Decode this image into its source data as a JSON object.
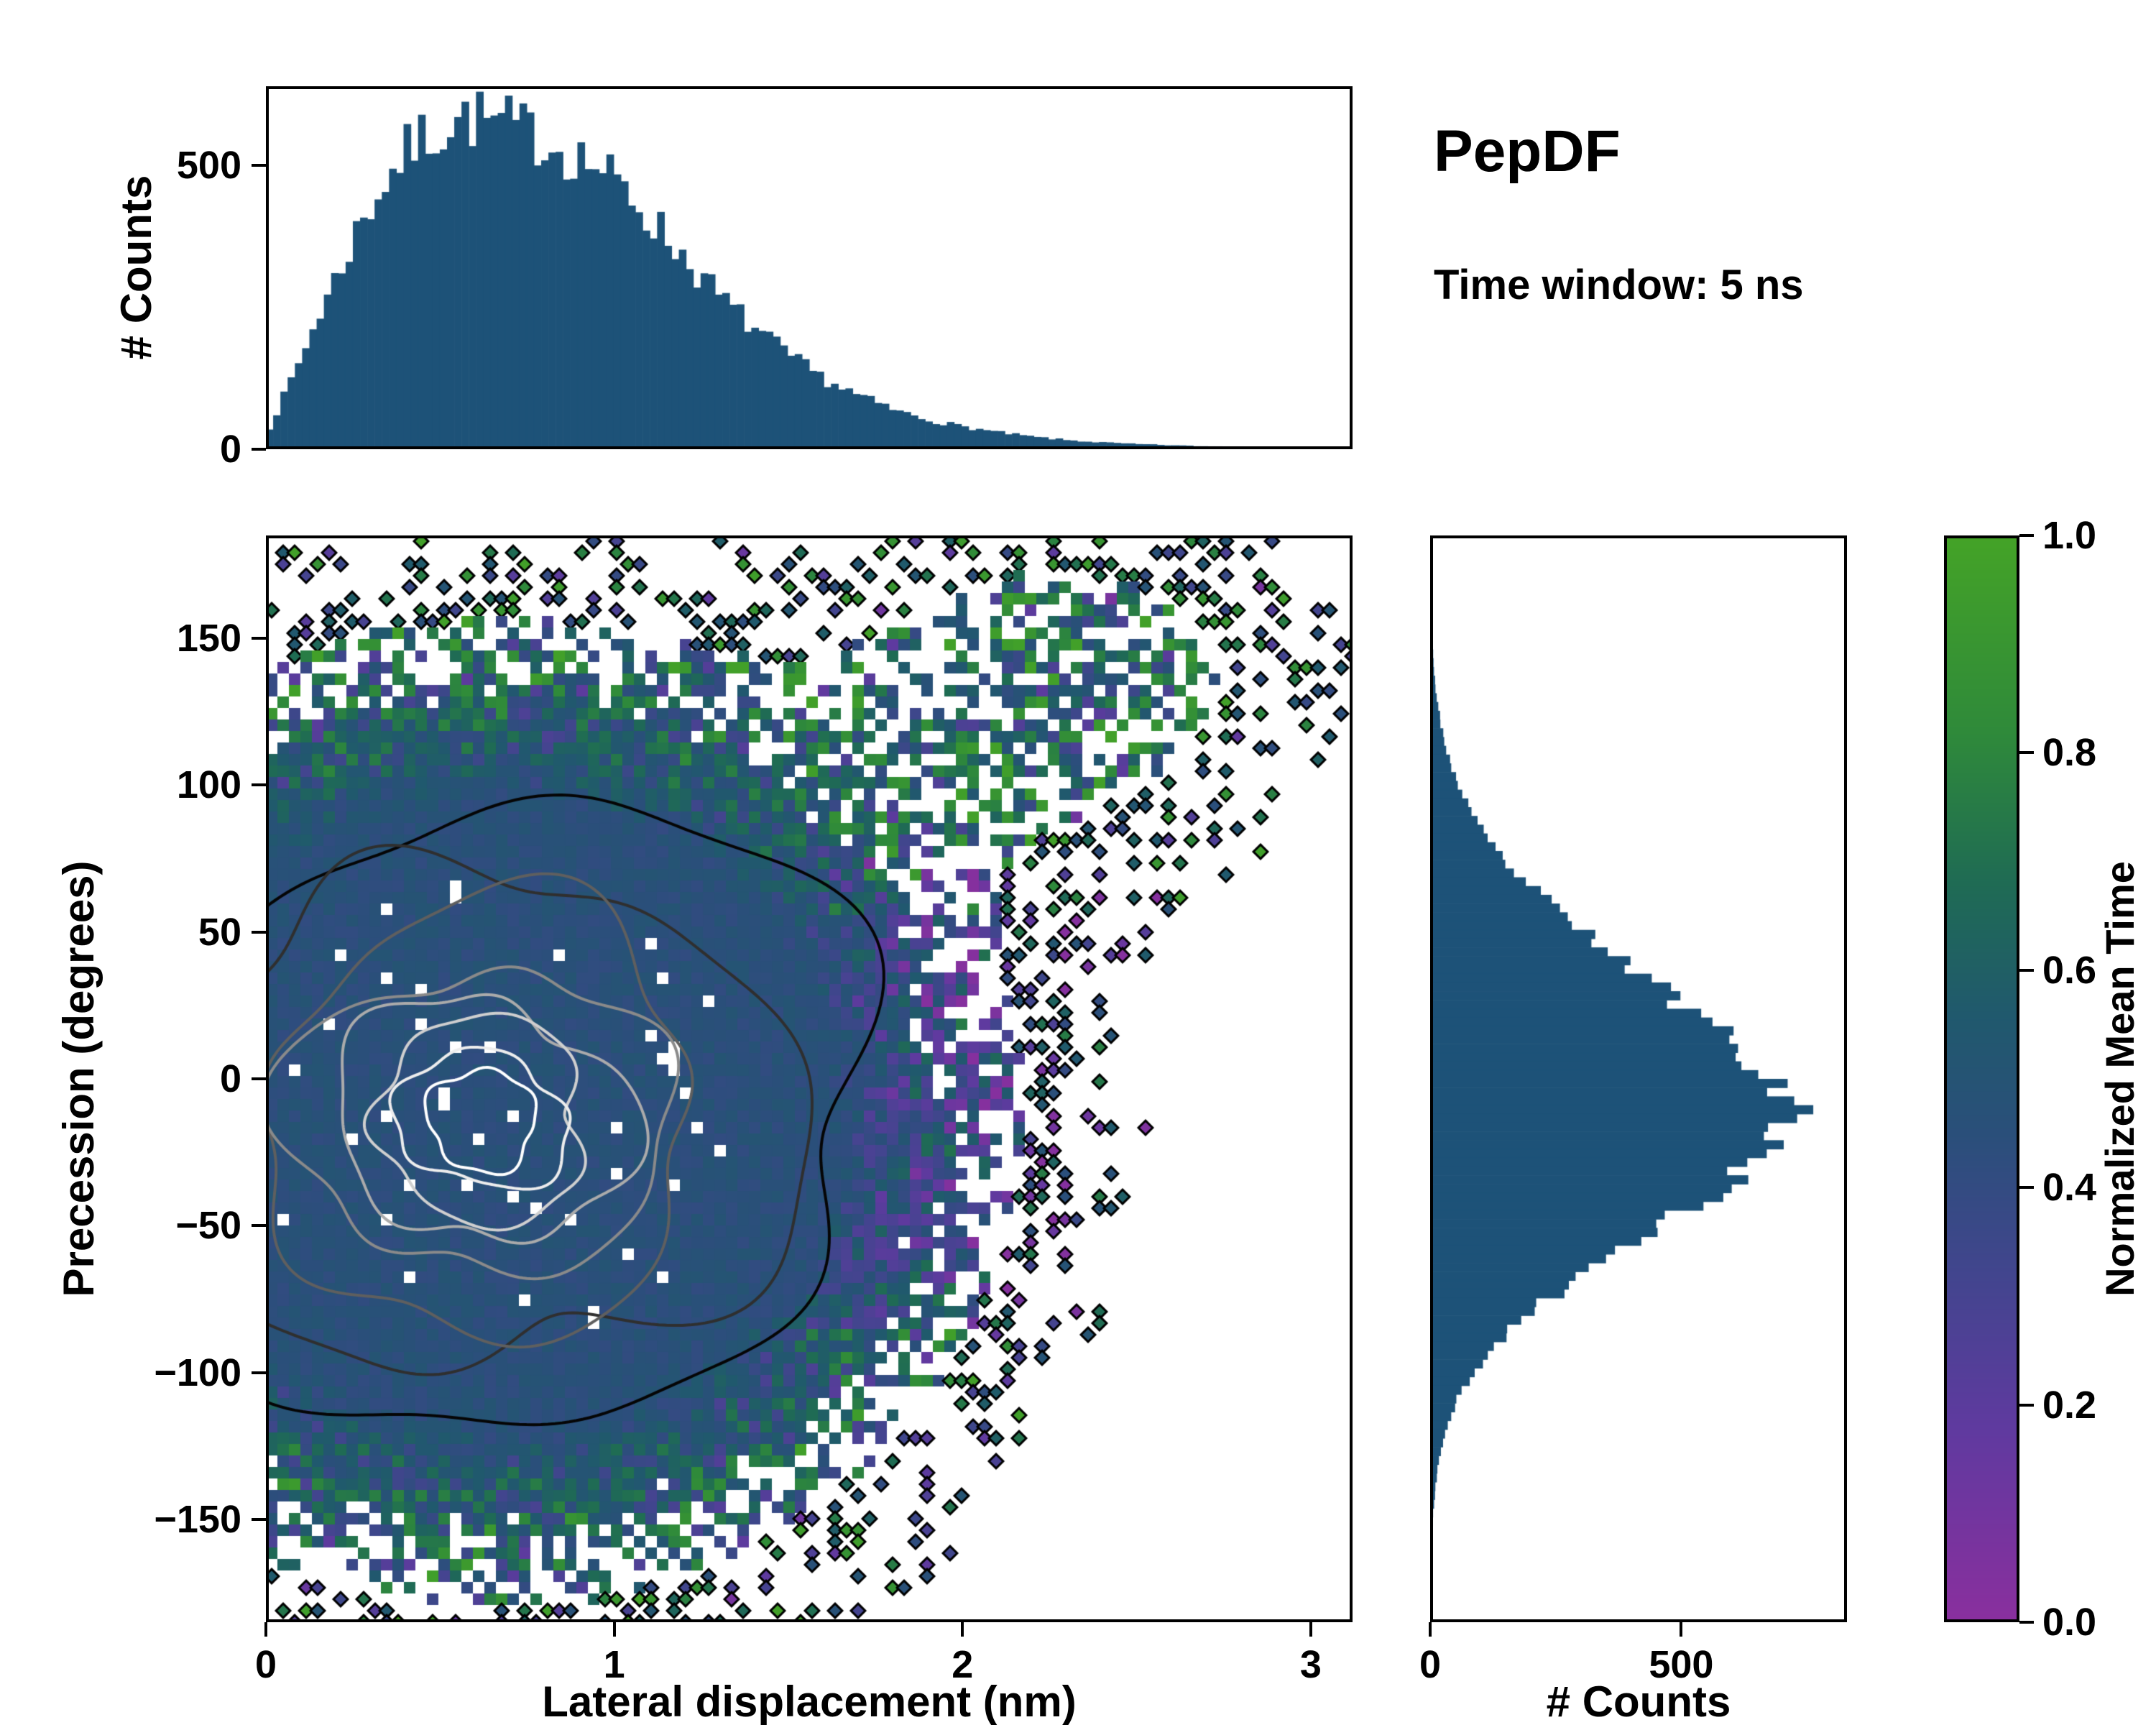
{
  "page": {
    "title": "PepDF",
    "subtitle": "Time window: 5 ns",
    "background": "#ffffff"
  },
  "colors": {
    "bar": "#1d5278",
    "axis": "#000000",
    "colormap_stops": [
      [
        0.0,
        "#8a2f9e"
      ],
      [
        0.18,
        "#5f3a9f"
      ],
      [
        0.32,
        "#42458e"
      ],
      [
        0.45,
        "#2a4f7a"
      ],
      [
        0.56,
        "#20596d"
      ],
      [
        0.68,
        "#1f6b54"
      ],
      [
        0.82,
        "#2f8a3a"
      ],
      [
        1.0,
        "#44a327"
      ]
    ]
  },
  "chart_data": [
    {
      "id": "top_hist",
      "type": "bar",
      "xlabel": "",
      "ylabel": "# Counts",
      "xlim": [
        0,
        3.12
      ],
      "ylim": [
        0,
        640
      ],
      "yticks": [
        {
          "v": 0,
          "label": "0"
        },
        {
          "v": 500,
          "label": "500"
        }
      ],
      "n_bins": 150,
      "envelope": [
        [
          0,
          25
        ],
        [
          0.05,
          90
        ],
        [
          0.1,
          160
        ],
        [
          0.15,
          235
        ],
        [
          0.2,
          300
        ],
        [
          0.25,
          370
        ],
        [
          0.3,
          430
        ],
        [
          0.35,
          480
        ],
        [
          0.4,
          520
        ],
        [
          0.45,
          550
        ],
        [
          0.5,
          565
        ],
        [
          0.55,
          580
        ],
        [
          0.6,
          585
        ],
        [
          0.65,
          575
        ],
        [
          0.7,
          570
        ],
        [
          0.75,
          560
        ],
        [
          0.8,
          545
        ],
        [
          0.85,
          530
        ],
        [
          0.9,
          515
        ],
        [
          0.95,
          500
        ],
        [
          1.0,
          470
        ],
        [
          1.05,
          445
        ],
        [
          1.1,
          410
        ],
        [
          1.15,
          375
        ],
        [
          1.2,
          340
        ],
        [
          1.3,
          270
        ],
        [
          1.4,
          215
        ],
        [
          1.5,
          165
        ],
        [
          1.6,
          125
        ],
        [
          1.7,
          95
        ],
        [
          1.8,
          70
        ],
        [
          1.9,
          52
        ],
        [
          2.0,
          40
        ],
        [
          2.1,
          30
        ],
        [
          2.2,
          22
        ],
        [
          2.3,
          16
        ],
        [
          2.4,
          12
        ],
        [
          2.5,
          9
        ],
        [
          2.6,
          7
        ],
        [
          2.7,
          5
        ],
        [
          2.8,
          4
        ],
        [
          2.9,
          3
        ],
        [
          3.0,
          2
        ],
        [
          3.12,
          1
        ]
      ],
      "noise": 0.1,
      "seed": 7
    },
    {
      "id": "main_heatmap",
      "type": "heatmap",
      "xlabel": "Lateral displacement (nm)",
      "ylabel": "Precession (degrees)",
      "xlim": [
        0,
        3.12
      ],
      "ylim": [
        -185,
        185
      ],
      "xticks": [
        {
          "v": 0,
          "label": "0"
        },
        {
          "v": 1,
          "label": "1"
        },
        {
          "v": 2,
          "label": "2"
        },
        {
          "v": 3,
          "label": "3"
        }
      ],
      "yticks": [
        {
          "v": 150,
          "label": "150"
        },
        {
          "v": 100,
          "label": "100"
        },
        {
          "v": 50,
          "label": "50"
        },
        {
          "v": 0,
          "label": "0"
        },
        {
          "v": -50,
          "label": "−50"
        },
        {
          "v": -100,
          "label": "−100"
        },
        {
          "v": -150,
          "label": "−150"
        }
      ],
      "value_range": [
        0,
        1
      ],
      "mean_value_core": 0.46,
      "density_center": {
        "x": 0.66,
        "y": -12
      },
      "density_sigma": {
        "core_x": 0.42,
        "core_y": 46,
        "broad_x": 0.7,
        "broad_y": 78
      },
      "upper_right_lobe": {
        "x": 2.3,
        "y": 135,
        "sx": 0.45,
        "sy": 38,
        "w": 0.07
      },
      "seed": 11,
      "contours": {
        "center": {
          "x": 0.62,
          "y": -14
        },
        "radii": [
          [
            0.17,
            16
          ],
          [
            0.24,
            24
          ],
          [
            0.32,
            33
          ],
          [
            0.41,
            43
          ],
          [
            0.52,
            55
          ],
          [
            0.66,
            70
          ],
          [
            0.85,
            92
          ],
          [
            1.08,
            112
          ]
        ],
        "colors": [
          "#ffffff",
          "#ededed",
          "#cfcfcf",
          "#ababab",
          "#8a8a8a",
          "#5f5f5f",
          "#2f2f2f",
          "#050505"
        ]
      }
    },
    {
      "id": "right_hist",
      "type": "bar",
      "orientation": "horizontal",
      "xlabel": "# Counts",
      "ylabel": "",
      "xlim": [
        0,
        830
      ],
      "ylim": [
        -185,
        185
      ],
      "xticks": [
        {
          "v": 0,
          "label": "0"
        },
        {
          "v": 500,
          "label": "500"
        }
      ],
      "n_bins": 124,
      "envelope": [
        [
          -185,
          0
        ],
        [
          -160,
          2
        ],
        [
          -150,
          5
        ],
        [
          -140,
          10
        ],
        [
          -130,
          17
        ],
        [
          -120,
          30
        ],
        [
          -110,
          52
        ],
        [
          -100,
          85
        ],
        [
          -90,
          130
        ],
        [
          -80,
          195
        ],
        [
          -70,
          275
        ],
        [
          -60,
          365
        ],
        [
          -50,
          465
        ],
        [
          -40,
          560
        ],
        [
          -30,
          640
        ],
        [
          -20,
          695
        ],
        [
          -10,
          720
        ],
        [
          -5,
          715
        ],
        [
          0,
          690
        ],
        [
          10,
          635
        ],
        [
          20,
          555
        ],
        [
          30,
          465
        ],
        [
          40,
          385
        ],
        [
          50,
          305
        ],
        [
          60,
          235
        ],
        [
          70,
          172
        ],
        [
          80,
          120
        ],
        [
          90,
          82
        ],
        [
          100,
          56
        ],
        [
          110,
          36
        ],
        [
          120,
          22
        ],
        [
          130,
          13
        ],
        [
          140,
          7
        ],
        [
          150,
          4
        ],
        [
          160,
          2
        ],
        [
          185,
          0
        ]
      ],
      "noise": 0.07,
      "seed": 23
    },
    {
      "id": "colorbar",
      "type": "colorbar",
      "label": "Normalized Mean Time",
      "range": [
        0,
        1
      ],
      "ticks": [
        {
          "v": 0.0,
          "label": "0.0"
        },
        {
          "v": 0.2,
          "label": "0.2"
        },
        {
          "v": 0.4,
          "label": "0.4"
        },
        {
          "v": 0.6,
          "label": "0.6"
        },
        {
          "v": 0.8,
          "label": "0.8"
        },
        {
          "v": 1.0,
          "label": "1.0"
        }
      ]
    }
  ]
}
